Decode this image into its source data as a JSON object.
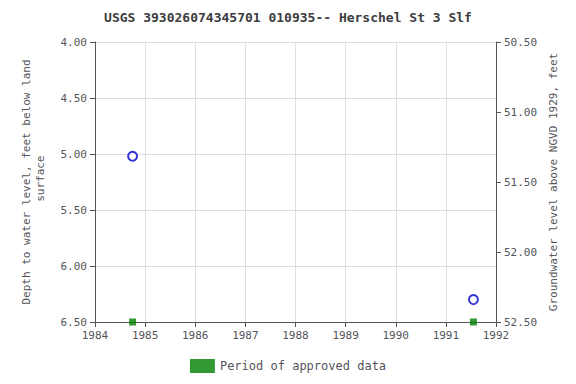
{
  "chart_data": {
    "type": "scatter",
    "title": "USGS 393026074345701 010935-- Herschel St 3 Slf",
    "ylabel": "Depth to water level, feet below land\n surface",
    "y2label": "Groundwater level above NGVD 1929, feet",
    "xlim": [
      1984,
      1992
    ],
    "xticks": [
      1984,
      1985,
      1986,
      1987,
      1988,
      1989,
      1990,
      1991,
      1992
    ],
    "ylim": [
      6.5,
      4.0
    ],
    "yticks": [
      {
        "value": 4.0,
        "label": "4.00"
      },
      {
        "value": 4.5,
        "label": "4.50"
      },
      {
        "value": 5.0,
        "label": "5.00"
      },
      {
        "value": 5.5,
        "label": "5.50"
      },
      {
        "value": 6.0,
        "label": "6.00"
      },
      {
        "value": 6.5,
        "label": "6.50"
      }
    ],
    "y2lim": [
      52.5,
      50.5
    ],
    "y2ticks": [
      {
        "value": 52.5,
        "label": "52.50"
      },
      {
        "value": 52.0,
        "label": "52.00"
      },
      {
        "value": 51.5,
        "label": "51.50"
      },
      {
        "value": 51.0,
        "label": "51.00"
      },
      {
        "value": 50.5,
        "label": "50.50"
      }
    ],
    "grid": true,
    "legend": "bottom",
    "series": [
      {
        "type": "scatter",
        "marker": "open circle",
        "color": "#0000cc",
        "x": [
          1984.75,
          1991.55
        ],
        "values": [
          5.02,
          6.3
        ]
      },
      {
        "name": "Period of approved data",
        "type": "scatter",
        "marker": "square",
        "color": "#008000",
        "x": [
          1984.75,
          1991.55
        ],
        "values": [
          6.5,
          6.5
        ]
      }
    ]
  }
}
